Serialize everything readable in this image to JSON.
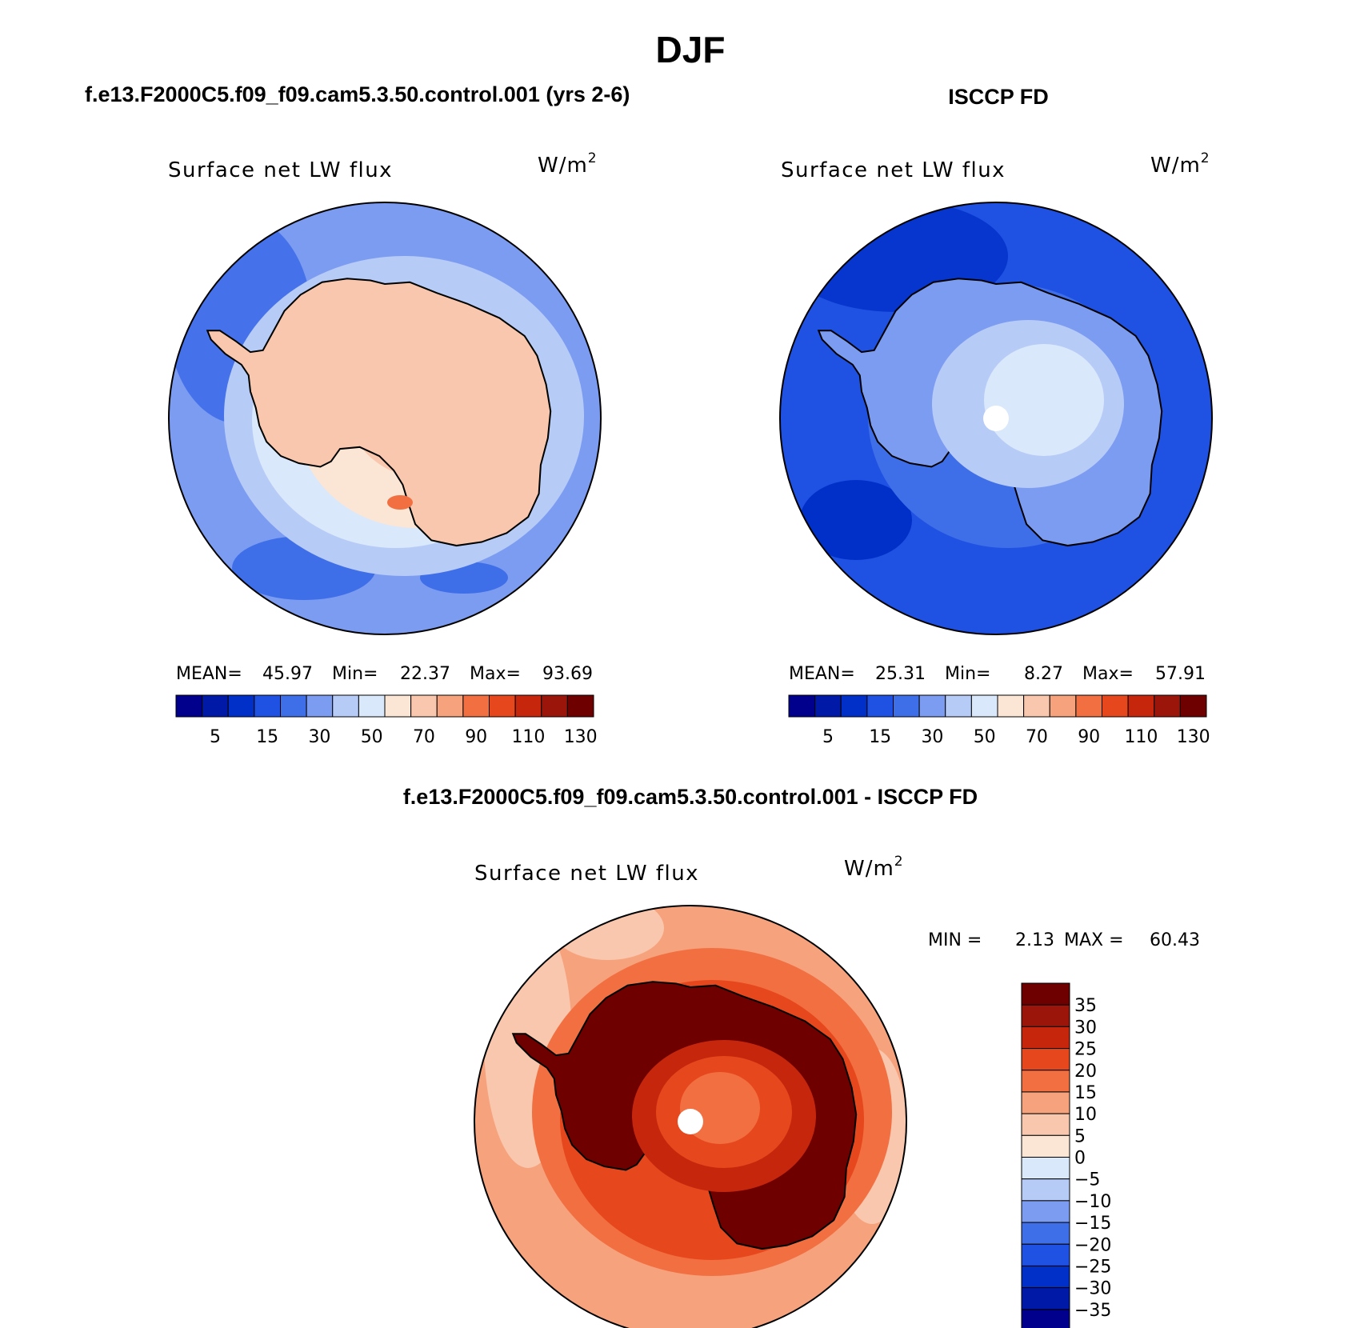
{
  "title": "DJF",
  "colors": {
    "scale": [
      "#00008c",
      "#0019a6",
      "#0030c8",
      "#1f52e3",
      "#3f6ee9",
      "#7c9cf1",
      "#b7cbf7",
      "#d9e8fb",
      "#fbe6d6",
      "#f9c7ad",
      "#f6a27d",
      "#f16f41",
      "#e6471c",
      "#c6270c",
      "#9c150a",
      "#6e0000"
    ],
    "land_edge": "#000000",
    "pole_mask": "#ffffff"
  },
  "panels": [
    {
      "case_label": "f.e13.F2000C5.f09_f09.cam5.3.50.control.001 (yrs 2-6)",
      "variable": "Surface net LW flux",
      "units_base": "W/m",
      "units_exp": "2",
      "stats": {
        "mean_label": "MEAN=",
        "mean": "45.97",
        "min_label": "Min=",
        "min": "22.37",
        "max_label": "Max=",
        "max": "93.69"
      },
      "colorbar_labels": [
        "5",
        "15",
        "30",
        "50",
        "70",
        "90",
        "110",
        "130"
      ]
    },
    {
      "case_label": "ISCCP FD",
      "variable": "Surface net LW flux",
      "units_base": "W/m",
      "units_exp": "2",
      "stats": {
        "mean_label": "MEAN=",
        "mean": "25.31",
        "min_label": "Min=",
        "min": "8.27",
        "max_label": "Max=",
        "max": "57.91"
      },
      "colorbar_labels": [
        "5",
        "15",
        "30",
        "50",
        "70",
        "90",
        "110",
        "130"
      ]
    }
  ],
  "diff_panel": {
    "case_label": "f.e13.F2000C5.f09_f09.cam5.3.50.control.001 - ISCCP FD",
    "variable": "Surface net LW flux",
    "units_base": "W/m",
    "units_exp": "2",
    "stats": {
      "min_label": "MIN =",
      "min": "2.13",
      "max_label": "MAX =",
      "max": "60.43"
    },
    "colorbar_labels": [
      "35",
      "30",
      "25",
      "20",
      "15",
      "10",
      "5",
      "0",
      "−5",
      "−10",
      "−15",
      "−20",
      "−25",
      "−30",
      "−35"
    ]
  }
}
